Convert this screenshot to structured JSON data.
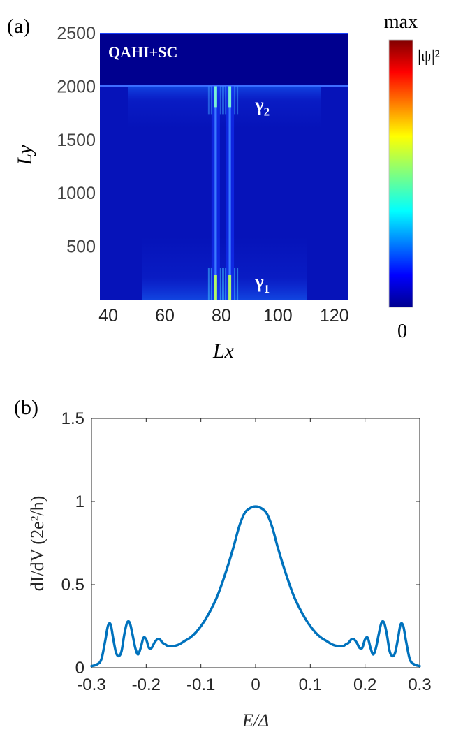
{
  "chart_data": [
    {
      "panel": "(a)",
      "type": "heatmap",
      "annotation": "QAHI+SC",
      "xlabel": "Lx",
      "ylabel": "Ly",
      "xlim": [
        37,
        125
      ],
      "ylim": [
        0,
        2500
      ],
      "xticks": [
        40,
        60,
        80,
        100,
        120
      ],
      "yticks": [
        500,
        1000,
        1500,
        2000,
        2500
      ],
      "colorbar": {
        "min_label": "0",
        "max_label": "max",
        "quantity": "|ψ|²",
        "colormap": "jet"
      },
      "mode_labels": [
        {
          "label": "γ2",
          "base": "γ",
          "sub": "2",
          "x": 92,
          "y": 1770
        },
        {
          "label": "γ1",
          "base": "γ",
          "sub": "1",
          "x": 92,
          "y": 110
        }
      ],
      "sc_region_top": 2000,
      "vertical_features_x": [
        78,
        83
      ]
    },
    {
      "panel": "(b)",
      "type": "line",
      "xlabel": "E/Δ",
      "ylabel": "dI/dV (2e²/h)",
      "xlim": [
        -0.3,
        0.3
      ],
      "ylim": [
        0,
        1.5
      ],
      "xticks": [
        -0.3,
        -0.2,
        -0.1,
        0,
        0.1,
        0.2,
        0.3
      ],
      "xtick_labels": [
        "-0.3",
        "-0.2",
        "-0.1",
        "0",
        "0.1",
        "0.2",
        "0.3"
      ],
      "yticks": [
        0,
        0.5,
        1,
        1.5
      ],
      "ytick_labels": [
        "0",
        "0.5",
        "1",
        "1.5"
      ],
      "series": [
        {
          "color": "#0072bd",
          "x": [
            -0.3,
            -0.29,
            -0.282,
            -0.275,
            -0.27,
            -0.265,
            -0.26,
            -0.255,
            -0.25,
            -0.245,
            -0.24,
            -0.235,
            -0.23,
            -0.225,
            -0.22,
            -0.215,
            -0.21,
            -0.205,
            -0.2,
            -0.195,
            -0.19,
            -0.185,
            -0.18,
            -0.175,
            -0.17,
            -0.165,
            -0.16,
            -0.155,
            -0.15,
            -0.14,
            -0.13,
            -0.12,
            -0.11,
            -0.1,
            -0.09,
            -0.08,
            -0.07,
            -0.06,
            -0.05,
            -0.04,
            -0.03,
            -0.02,
            -0.01,
            0,
            0.01,
            0.02,
            0.03,
            0.04,
            0.05,
            0.06,
            0.07,
            0.08,
            0.09,
            0.1,
            0.11,
            0.12,
            0.13,
            0.14,
            0.15,
            0.155,
            0.16,
            0.165,
            0.17,
            0.175,
            0.18,
            0.185,
            0.19,
            0.195,
            0.2,
            0.205,
            0.21,
            0.215,
            0.22,
            0.225,
            0.23,
            0.235,
            0.24,
            0.245,
            0.25,
            0.255,
            0.26,
            0.265,
            0.27,
            0.275,
            0.282,
            0.29,
            0.3
          ],
          "y": [
            0.01,
            0.02,
            0.05,
            0.16,
            0.25,
            0.26,
            0.17,
            0.09,
            0.07,
            0.1,
            0.2,
            0.27,
            0.27,
            0.2,
            0.12,
            0.08,
            0.12,
            0.18,
            0.17,
            0.12,
            0.12,
            0.15,
            0.17,
            0.17,
            0.15,
            0.14,
            0.13,
            0.13,
            0.13,
            0.14,
            0.16,
            0.18,
            0.21,
            0.25,
            0.3,
            0.36,
            0.43,
            0.52,
            0.62,
            0.73,
            0.85,
            0.93,
            0.96,
            0.97,
            0.96,
            0.93,
            0.85,
            0.73,
            0.62,
            0.52,
            0.43,
            0.36,
            0.3,
            0.25,
            0.21,
            0.18,
            0.16,
            0.14,
            0.13,
            0.13,
            0.13,
            0.14,
            0.15,
            0.17,
            0.17,
            0.15,
            0.12,
            0.12,
            0.17,
            0.18,
            0.12,
            0.08,
            0.12,
            0.2,
            0.27,
            0.27,
            0.2,
            0.1,
            0.07,
            0.09,
            0.17,
            0.26,
            0.25,
            0.16,
            0.05,
            0.02,
            0.01
          ]
        }
      ]
    }
  ]
}
